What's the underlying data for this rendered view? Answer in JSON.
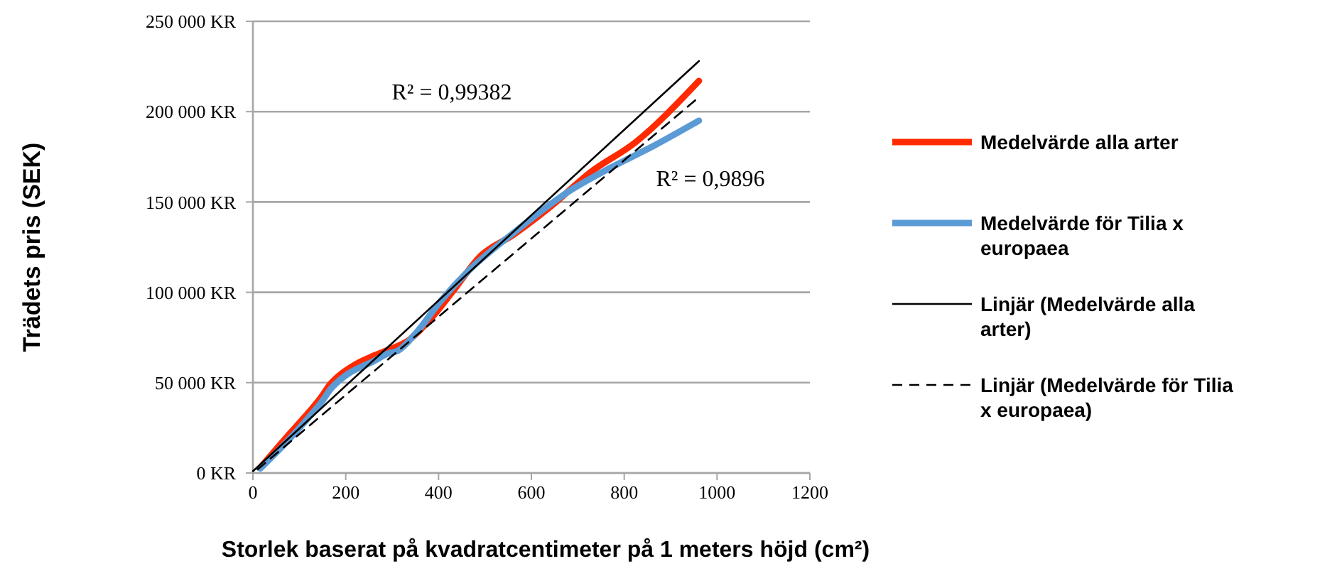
{
  "chart_data": {
    "type": "line",
    "xlabel": "Storlek baserat på kvadratcentimeter på 1 meters höjd (cm²)",
    "ylabel": "Trädets pris (SEK)",
    "xlim": [
      0,
      1200
    ],
    "xticks": [
      0,
      200,
      400,
      600,
      800,
      1000,
      1200
    ],
    "ylim": [
      0,
      250000
    ],
    "yticks": [
      {
        "value": 0,
        "label": "0 KR"
      },
      {
        "value": 50000,
        "label": "50 000 KR"
      },
      {
        "value": 100000,
        "label": "100 000 KR"
      },
      {
        "value": 150000,
        "label": "150 000 KR"
      },
      {
        "value": 200000,
        "label": "200 000 KR"
      },
      {
        "value": 250000,
        "label": "250 000 KR"
      }
    ],
    "grid": "y",
    "legend": "right",
    "annotations": [
      "R² = 0,99382",
      "R² = 0,9896"
    ],
    "series": [
      {
        "name": "Medelvärde alla arter",
        "color": "#ff2a00",
        "x": [
          16,
          72,
          121,
          150,
          163,
          186,
          220,
          261,
          300,
          333,
          382,
          431,
          490,
          562,
          644,
          725,
          824,
          961
        ],
        "values": [
          3000,
          19700,
          33800,
          43000,
          48000,
          54000,
          60000,
          65000,
          69000,
          73000,
          85000,
          100600,
          120000,
          132000,
          148000,
          166000,
          183000,
          217000
        ]
      },
      {
        "name": "Medelvärde för Tilia x europaea",
        "color": "#5b9bd5",
        "x": [
          16,
          72,
          121,
          150,
          166,
          200,
          261,
          290,
          312,
          350,
          404,
          465,
          557,
          679,
          771,
          863,
          961
        ],
        "values": [
          2500,
          17000,
          31000,
          40000,
          46000,
          54000,
          62000,
          66000,
          67600,
          77000,
          95000,
          112000,
          132000,
          155600,
          169000,
          181000,
          195000
        ]
      },
      {
        "name": "Linjär (Medelvärde alla arter)",
        "color": "#000000",
        "line_style": "solid",
        "x": [
          0,
          961
        ],
        "values": [
          1000,
          228000
        ]
      },
      {
        "name": "Linjär (Medelvärde för Tilia x europaea)",
        "color": "#000000",
        "line_style": "dashed",
        "x": [
          10,
          961
        ],
        "values": [
          2000,
          208000
        ]
      }
    ]
  }
}
